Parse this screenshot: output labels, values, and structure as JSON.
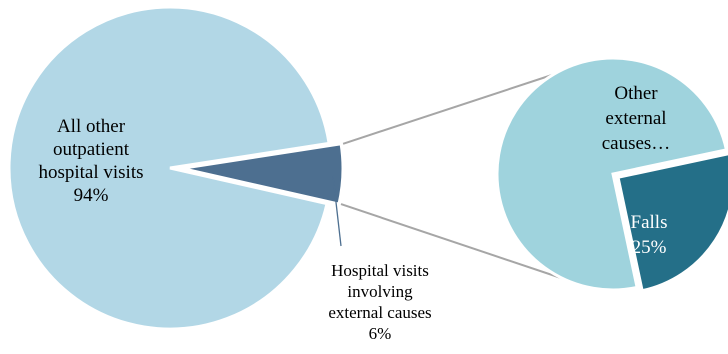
{
  "chart_data": [
    {
      "type": "pie",
      "name": "outpatient-visits",
      "slices": [
        {
          "label_lines": [
            "All other",
            "outpatient",
            "hospital visits"
          ],
          "value_label": "94%",
          "value": 94,
          "color": "#b2d7e6"
        },
        {
          "label_lines": [
            "Hospital visits",
            "involving",
            "external causes"
          ],
          "value_label": "6%",
          "value": 6,
          "color": "#4d6f90"
        }
      ]
    },
    {
      "type": "pie",
      "name": "external-causes-breakdown",
      "slices": [
        {
          "label_lines": [
            "Other",
            "external",
            "causes…"
          ],
          "value_label": "",
          "value": 75,
          "color": "#9fd3dd"
        },
        {
          "label_lines": [
            "Falls"
          ],
          "value_label": "25%",
          "value": 25,
          "color": "#246f88"
        }
      ]
    }
  ],
  "colors": {
    "connector": "#a6a6a6",
    "leader": "#4d6f90",
    "slice_border": "#ffffff",
    "label_dark": "#000000",
    "label_light": "#ffffff"
  }
}
